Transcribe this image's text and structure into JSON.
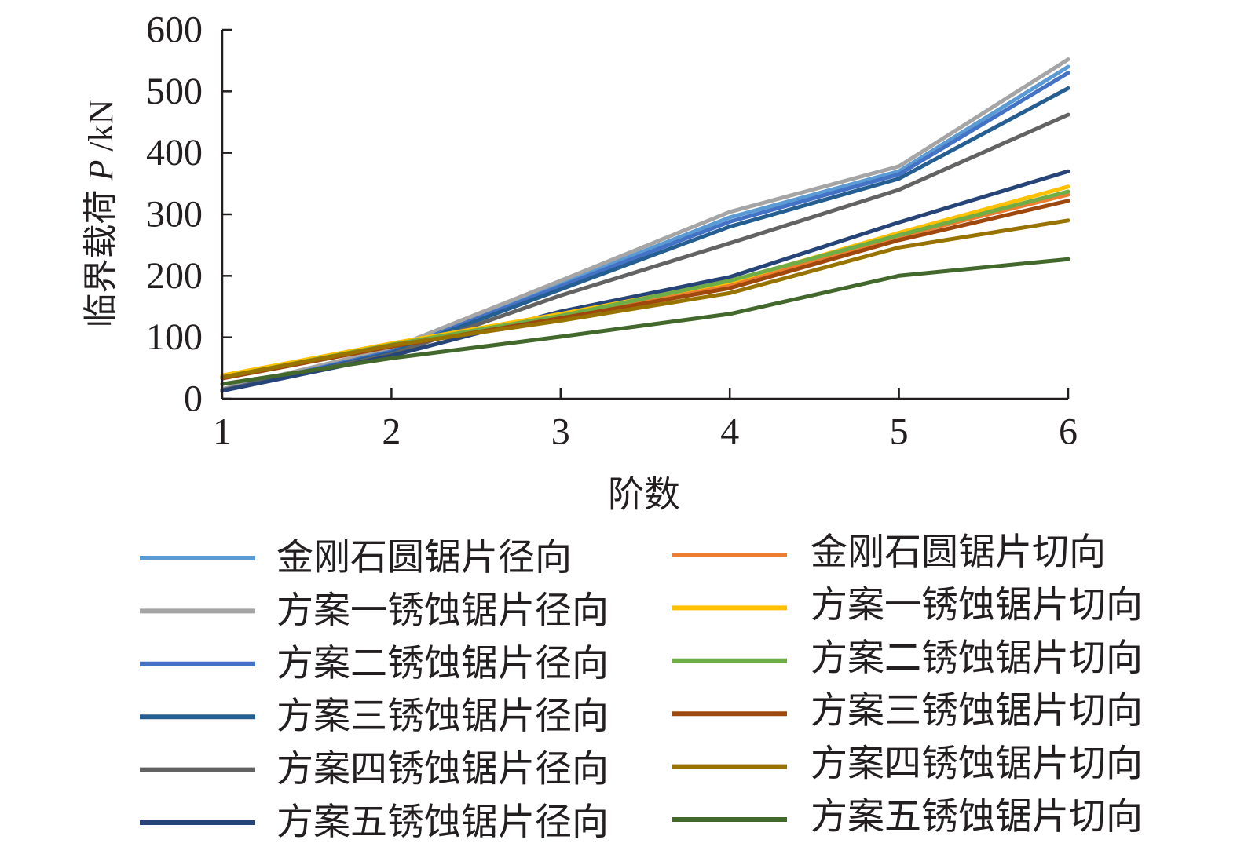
{
  "chart_data": {
    "type": "line",
    "x": [
      1,
      2,
      3,
      4,
      5,
      6
    ],
    "xlim": [
      1,
      6
    ],
    "ylim": [
      0,
      600
    ],
    "xlabel": "阶数",
    "ylabel": "临界载荷 P /kN",
    "xticks": [
      "1",
      "2",
      "3",
      "4",
      "5",
      "6"
    ],
    "yticks": [
      "0",
      "100",
      "200",
      "300",
      "400",
      "500",
      "600"
    ],
    "grid": false,
    "legend_position": "bottom",
    "series": [
      {
        "name": "金刚石圆锯片径向",
        "color": "#5b9bd5",
        "values": [
          14,
          78,
          187,
          295,
          370,
          540
        ]
      },
      {
        "name": "方案一锈蚀锯片径向",
        "color": "#a5a5a5",
        "values": [
          16,
          82,
          192,
          304,
          378,
          552
        ]
      },
      {
        "name": "方案二锈蚀锯片径向",
        "color": "#4472c4",
        "values": [
          14,
          77,
          183,
          288,
          365,
          530
        ]
      },
      {
        "name": "方案三锈蚀锯片径向",
        "color": "#255e91",
        "values": [
          13,
          75,
          178,
          280,
          358,
          505
        ]
      },
      {
        "name": "方案四锈蚀锯片径向",
        "color": "#636363",
        "values": [
          14,
          72,
          168,
          253,
          340,
          462
        ]
      },
      {
        "name": "方案五锈蚀锯片径向",
        "color": "#264478",
        "values": [
          13,
          70,
          142,
          198,
          287,
          370
        ]
      },
      {
        "name": "金刚石圆锯片切向",
        "color": "#ed7d31",
        "values": [
          36,
          88,
          136,
          186,
          264,
          332
        ]
      },
      {
        "name": "方案一锈蚀锯片切向",
        "color": "#ffc000",
        "values": [
          38,
          90,
          138,
          190,
          270,
          345
        ]
      },
      {
        "name": "方案二锈蚀锯片切向",
        "color": "#70ad47",
        "values": [
          35,
          88,
          135,
          192,
          266,
          337
        ]
      },
      {
        "name": "方案三锈蚀锯片切向",
        "color": "#9e480e",
        "values": [
          33,
          85,
          131,
          180,
          258,
          322
        ]
      },
      {
        "name": "方案四锈蚀锯片切向",
        "color": "#997300",
        "values": [
          35,
          87,
          127,
          172,
          246,
          290
        ]
      },
      {
        "name": "方案五锈蚀锯片切向",
        "color": "#43682b",
        "values": [
          24,
          66,
          101,
          138,
          200,
          227
        ]
      }
    ]
  }
}
